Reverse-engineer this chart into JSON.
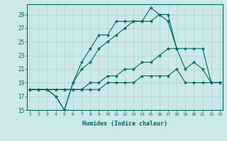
{
  "xlabel": "Humidex (Indice chaleur)",
  "ylabel": "",
  "background_color": "#cce8e8",
  "grid_color": "#aad4d4",
  "line_color": "#006868",
  "x_values": [
    1,
    2,
    3,
    4,
    5,
    6,
    7,
    8,
    9,
    10,
    11,
    12,
    13,
    14,
    15,
    16,
    17,
    18,
    19,
    20,
    21,
    22,
    23
  ],
  "series": [
    [
      18,
      18,
      18,
      17,
      15,
      19,
      22,
      24,
      26,
      26,
      28,
      28,
      28,
      28,
      30,
      29,
      29,
      24,
      null,
      null,
      null,
      null,
      null
    ],
    [
      18,
      18,
      18,
      17,
      15,
      19,
      21,
      22,
      24,
      25,
      26,
      27,
      28,
      28,
      28,
      29,
      28,
      24,
      21,
      22,
      21,
      19,
      19
    ],
    [
      18,
      18,
      18,
      18,
      18,
      18,
      18,
      19,
      19,
      20,
      20,
      21,
      21,
      22,
      22,
      23,
      24,
      24,
      24,
      24,
      24,
      19,
      19
    ],
    [
      18,
      18,
      18,
      18,
      18,
      18,
      18,
      18,
      18,
      19,
      19,
      19,
      19,
      20,
      20,
      20,
      20,
      21,
      19,
      19,
      19,
      19,
      19
    ]
  ],
  "ylim": [
    15,
    30
  ],
  "yticks": [
    15,
    17,
    19,
    21,
    23,
    25,
    27,
    29
  ],
  "xlim": [
    1,
    23
  ],
  "xticks": [
    1,
    2,
    3,
    4,
    5,
    6,
    7,
    8,
    9,
    10,
    11,
    12,
    13,
    14,
    15,
    16,
    17,
    18,
    19,
    20,
    21,
    22,
    23
  ]
}
